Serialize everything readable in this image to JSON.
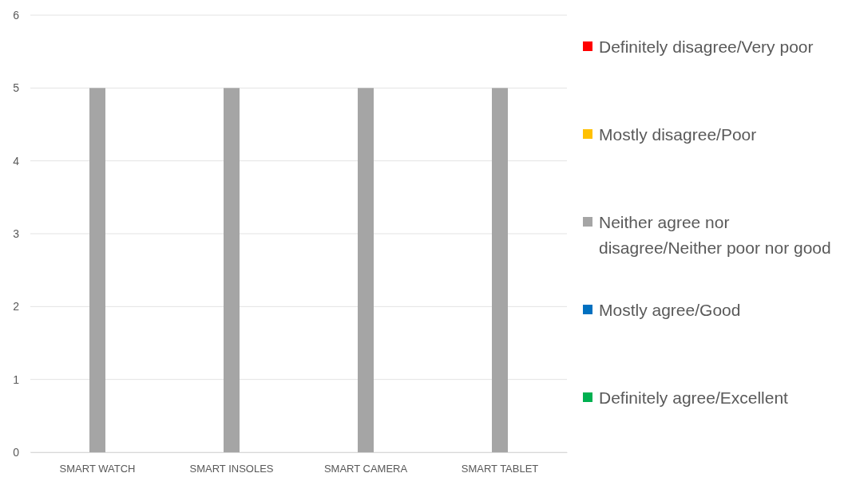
{
  "chart_data": {
    "type": "bar",
    "categories": [
      "SMART WATCH",
      "SMART INSOLES",
      "SMART CAMERA",
      "SMART TABLET"
    ],
    "series": [
      {
        "name": "Definitely disagree/Very poor",
        "color": "#ff0000",
        "values": [
          0,
          0,
          0,
          0
        ]
      },
      {
        "name": "Mostly disagree/Poor",
        "color": "#ffc000",
        "values": [
          0,
          0,
          0,
          0
        ]
      },
      {
        "name": "Neither agree nor disagree/Neither poor nor good",
        "color": "#a5a5a5",
        "values": [
          5,
          5,
          5,
          5
        ]
      },
      {
        "name": "Mostly agree/Good",
        "color": "#0070c0",
        "values": [
          0,
          0,
          0,
          0
        ]
      },
      {
        "name": "Definitely agree/Excellent",
        "color": "#00b050",
        "values": [
          0,
          0,
          0,
          0
        ]
      }
    ],
    "ylim": [
      0,
      6
    ],
    "yticks": [
      0,
      1,
      2,
      3,
      4,
      5,
      6
    ],
    "grid": "y",
    "legend": "right"
  }
}
